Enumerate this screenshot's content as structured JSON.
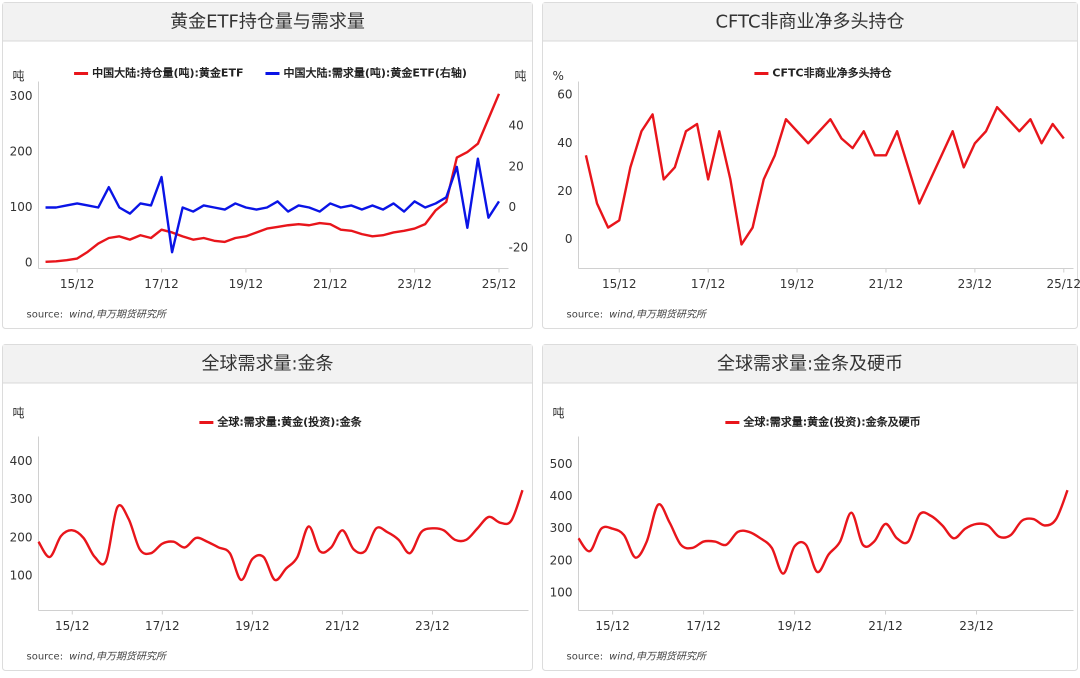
{
  "chart_data": [
    {
      "type": "line",
      "title": "黄金ETF持仓量与需求量",
      "y_label": "吨",
      "y2_label": "吨",
      "legend_position": "top",
      "smooth": false,
      "source_prefix": "source:",
      "source": "wind,申万期货研究所",
      "xlim": [
        "15/01",
        "26/01"
      ],
      "xticks": [
        "15/12",
        "17/12",
        "19/12",
        "21/12",
        "23/12",
        "25/12"
      ],
      "ylim": [
        -10,
        320
      ],
      "yticks": [
        0,
        100,
        200,
        300
      ],
      "y2lim": [
        -30,
        60
      ],
      "y2ticks": [
        -20,
        0,
        20,
        40
      ],
      "x": [
        "15/03",
        "15/06",
        "15/09",
        "15/12",
        "16/03",
        "16/06",
        "16/09",
        "16/12",
        "17/03",
        "17/06",
        "17/09",
        "17/12",
        "18/03",
        "18/06",
        "18/09",
        "18/12",
        "19/03",
        "19/06",
        "19/09",
        "19/12",
        "20/03",
        "20/06",
        "20/09",
        "20/12",
        "21/03",
        "21/06",
        "21/09",
        "21/12",
        "22/03",
        "22/06",
        "22/09",
        "22/12",
        "23/03",
        "23/06",
        "23/09",
        "23/12",
        "24/03",
        "24/06",
        "24/09",
        "24/12",
        "25/03",
        "25/06",
        "25/09",
        "25/12"
      ],
      "series": [
        {
          "name": "中国大陆:持仓量(吨):黄金ETF",
          "color": "#e8151b",
          "values": [
            2,
            3,
            5,
            8,
            20,
            35,
            45,
            48,
            42,
            50,
            45,
            60,
            55,
            48,
            42,
            45,
            40,
            38,
            45,
            48,
            55,
            62,
            65,
            68,
            70,
            68,
            72,
            70,
            60,
            58,
            52,
            48,
            50,
            55,
            58,
            62,
            70,
            95,
            110,
            190,
            200,
            215,
            260,
            305
          ]
        },
        {
          "name": "中国大陆:需求量(吨):黄金ETF(右轴)",
          "color": "#0a14e6",
          "axis": "y2",
          "values": [
            0,
            0,
            1,
            2,
            1,
            0,
            10,
            0,
            -3,
            2,
            1,
            15,
            -22,
            0,
            -2,
            1,
            0,
            -1,
            2,
            0,
            -1,
            0,
            3,
            -2,
            1,
            0,
            -2,
            2,
            0,
            1,
            -1,
            1,
            -1,
            2,
            -2,
            3,
            0,
            2,
            5,
            20,
            -10,
            24,
            -5,
            3
          ]
        }
      ]
    },
    {
      "type": "line",
      "title": "CFTC非商业净多头持仓",
      "y_label": "%",
      "legend_position": "top",
      "smooth": false,
      "source_prefix": "source:",
      "source": "wind,申万期货研究所",
      "xlim": [
        "15/01",
        "26/01"
      ],
      "xticks": [
        "15/12",
        "17/12",
        "19/12",
        "21/12",
        "23/12",
        "25/12"
      ],
      "ylim": [
        -12,
        64
      ],
      "yticks": [
        0,
        20,
        40,
        60
      ],
      "x": [
        "15/03",
        "15/06",
        "15/09",
        "15/12",
        "16/03",
        "16/06",
        "16/09",
        "16/12",
        "17/03",
        "17/06",
        "17/09",
        "17/12",
        "18/03",
        "18/06",
        "18/09",
        "18/12",
        "19/03",
        "19/06",
        "19/09",
        "19/12",
        "20/03",
        "20/06",
        "20/09",
        "20/12",
        "21/03",
        "21/06",
        "21/09",
        "21/12",
        "22/03",
        "22/06",
        "22/09",
        "22/12",
        "23/03",
        "23/06",
        "23/09",
        "23/12",
        "24/03",
        "24/06",
        "24/09",
        "24/12",
        "25/03",
        "25/06",
        "25/09",
        "25/12"
      ],
      "series": [
        {
          "name": "CFTC非商业净多头持仓",
          "color": "#e8151b",
          "values": [
            35,
            15,
            5,
            8,
            30,
            45,
            52,
            25,
            30,
            45,
            48,
            25,
            45,
            25,
            -2,
            5,
            25,
            35,
            50,
            45,
            40,
            45,
            50,
            42,
            38,
            45,
            35,
            35,
            45,
            30,
            15,
            25,
            35,
            45,
            30,
            40,
            45,
            55,
            50,
            45,
            50,
            40,
            48,
            42
          ]
        }
      ]
    },
    {
      "type": "line",
      "title": "全球需求量:金条",
      "y_label": "吨",
      "legend_position": "top",
      "smooth": true,
      "source_prefix": "source:",
      "source": "wind,申万期货研究所",
      "xlim": [
        "15/03",
        "25/12"
      ],
      "xticks": [
        "15/12",
        "17/12",
        "19/12",
        "21/12",
        "23/12"
      ],
      "ylim": [
        10,
        455
      ],
      "yticks": [
        100,
        200,
        300,
        400
      ],
      "x": [
        "15/03",
        "15/06",
        "15/09",
        "15/12",
        "16/03",
        "16/06",
        "16/09",
        "16/12",
        "17/03",
        "17/06",
        "17/09",
        "17/12",
        "18/03",
        "18/06",
        "18/09",
        "18/12",
        "19/03",
        "19/06",
        "19/09",
        "19/12",
        "20/03",
        "20/06",
        "20/09",
        "20/12",
        "21/03",
        "21/06",
        "21/09",
        "21/12",
        "22/03",
        "22/06",
        "22/09",
        "22/12",
        "23/03",
        "23/06",
        "23/09",
        "23/12",
        "24/03",
        "24/06",
        "24/09",
        "24/12",
        "25/03",
        "25/06",
        "25/09",
        "25/12"
      ],
      "series": [
        {
          "name": "全球:需求量:黄金(投资):金条",
          "color": "#e8151b",
          "values": [
            190,
            150,
            205,
            220,
            200,
            150,
            140,
            280,
            250,
            170,
            160,
            185,
            190,
            175,
            200,
            190,
            175,
            160,
            90,
            145,
            150,
            90,
            120,
            150,
            230,
            165,
            175,
            220,
            170,
            165,
            225,
            215,
            195,
            160,
            215,
            225,
            220,
            195,
            195,
            225,
            255,
            240,
            245,
            325
          ]
        }
      ]
    },
    {
      "type": "line",
      "title": "全球需求量:金条及硬币",
      "y_label": "吨",
      "legend_position": "top",
      "smooth": true,
      "source_prefix": "source:",
      "source": "wind,申万期货研究所",
      "xlim": [
        "15/03",
        "25/12"
      ],
      "xticks": [
        "15/12",
        "17/12",
        "19/12",
        "21/12",
        "23/12"
      ],
      "ylim": [
        45,
        575
      ],
      "yticks": [
        100,
        200,
        300,
        400,
        500
      ],
      "x": [
        "15/03",
        "15/06",
        "15/09",
        "15/12",
        "16/03",
        "16/06",
        "16/09",
        "16/12",
        "17/03",
        "17/06",
        "17/09",
        "17/12",
        "18/03",
        "18/06",
        "18/09",
        "18/12",
        "19/03",
        "19/06",
        "19/09",
        "19/12",
        "20/03",
        "20/06",
        "20/09",
        "20/12",
        "21/03",
        "21/06",
        "21/09",
        "21/12",
        "22/03",
        "22/06",
        "22/09",
        "22/12",
        "23/03",
        "23/06",
        "23/09",
        "23/12",
        "24/03",
        "24/06",
        "24/09",
        "24/12",
        "25/03",
        "25/06",
        "25/09",
        "25/12"
      ],
      "series": [
        {
          "name": "全球:需求量:黄金(投资):金条及硬币",
          "color": "#e8151b",
          "values": [
            270,
            230,
            300,
            300,
            280,
            210,
            260,
            375,
            320,
            250,
            240,
            260,
            260,
            250,
            290,
            290,
            270,
            240,
            160,
            245,
            250,
            165,
            220,
            260,
            350,
            250,
            260,
            315,
            270,
            260,
            345,
            340,
            310,
            270,
            300,
            315,
            310,
            275,
            280,
            325,
            330,
            310,
            330,
            420
          ]
        }
      ]
    }
  ]
}
